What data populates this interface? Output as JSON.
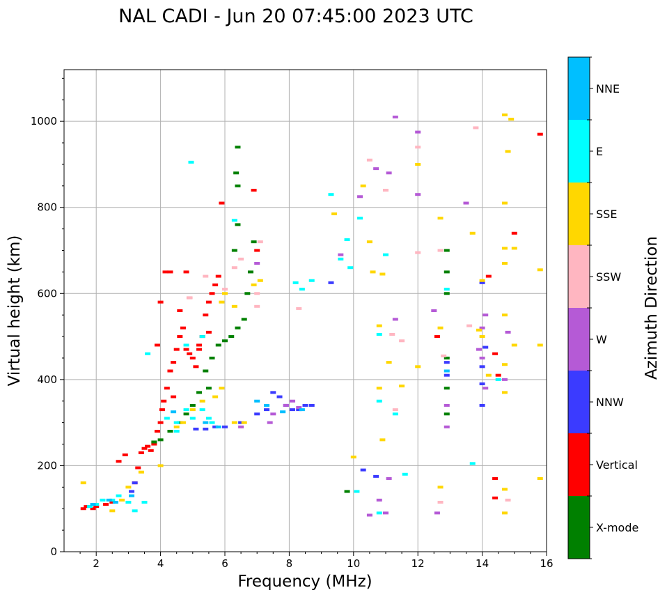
{
  "chart_data": {
    "type": "scatter",
    "title": "NAL CADI - Jun 20 07:45:00 2023 UTC",
    "xlabel": "Frequency (MHz)",
    "ylabel": "Virtual height (km)",
    "xlim": [
      1,
      16
    ],
    "ylim": [
      0,
      1120
    ],
    "xticks": [
      2,
      4,
      6,
      8,
      10,
      12,
      14,
      16
    ],
    "yticks": [
      0,
      200,
      400,
      600,
      800,
      1000
    ],
    "grid": true,
    "colorbar": {
      "label": "Azimuth Direction",
      "categories": [
        {
          "name": "X-mode",
          "color": "#008000"
        },
        {
          "name": "Vertical",
          "color": "#ff0000"
        },
        {
          "name": "NNW",
          "color": "#3b3bff"
        },
        {
          "name": "W",
          "color": "#b55ad6"
        },
        {
          "name": "SSW",
          "color": "#ffb6c1"
        },
        {
          "name": "SSE",
          "color": "#ffd700"
        },
        {
          "name": "E",
          "color": "#00ffff"
        },
        {
          "name": "NNE",
          "color": "#00bfff"
        }
      ]
    },
    "series": [
      {
        "name": "Vertical",
        "points": [
          [
            1.6,
            100
          ],
          [
            1.7,
            105
          ],
          [
            1.9,
            100
          ],
          [
            2.0,
            105
          ],
          [
            2.3,
            110
          ],
          [
            2.5,
            115
          ],
          [
            2.7,
            210
          ],
          [
            2.9,
            225
          ],
          [
            3.2,
            160
          ],
          [
            3.3,
            195
          ],
          [
            3.4,
            230
          ],
          [
            3.5,
            240
          ],
          [
            3.6,
            245
          ],
          [
            3.7,
            235
          ],
          [
            3.8,
            250
          ],
          [
            3.9,
            280
          ],
          [
            4.0,
            300
          ],
          [
            4.05,
            330
          ],
          [
            4.1,
            350
          ],
          [
            4.2,
            380
          ],
          [
            4.3,
            420
          ],
          [
            4.3,
            650
          ],
          [
            4.4,
            440
          ],
          [
            4.5,
            470
          ],
          [
            4.6,
            500
          ],
          [
            4.7,
            520
          ],
          [
            4.8,
            470
          ],
          [
            4.9,
            460
          ],
          [
            5.0,
            450
          ],
          [
            5.1,
            430
          ],
          [
            5.2,
            480
          ],
          [
            5.3,
            500
          ],
          [
            5.4,
            550
          ],
          [
            5.5,
            580
          ],
          [
            5.6,
            600
          ],
          [
            5.7,
            620
          ],
          [
            5.8,
            640
          ],
          [
            5.9,
            810
          ],
          [
            4.6,
            560
          ],
          [
            4.9,
            590
          ],
          [
            5.2,
            470
          ],
          [
            5.5,
            510
          ],
          [
            6.9,
            840
          ],
          [
            7.0,
            700
          ],
          [
            4.8,
            650
          ],
          [
            4.15,
            650
          ],
          [
            12.6,
            500
          ],
          [
            14.2,
            640
          ],
          [
            14.4,
            460
          ],
          [
            14.5,
            410
          ],
          [
            14.4,
            170
          ],
          [
            14.4,
            125
          ],
          [
            15.0,
            740
          ],
          [
            15.8,
            970
          ],
          [
            4.0,
            580
          ],
          [
            3.9,
            480
          ],
          [
            4.4,
            360
          ]
        ]
      },
      {
        "name": "X-mode",
        "points": [
          [
            3.8,
            255
          ],
          [
            4.0,
            260
          ],
          [
            4.3,
            280
          ],
          [
            4.6,
            300
          ],
          [
            4.8,
            320
          ],
          [
            5.0,
            340
          ],
          [
            5.2,
            370
          ],
          [
            5.4,
            420
          ],
          [
            5.6,
            450
          ],
          [
            5.8,
            480
          ],
          [
            6.0,
            490
          ],
          [
            6.2,
            500
          ],
          [
            6.4,
            520
          ],
          [
            6.6,
            540
          ],
          [
            6.7,
            600
          ],
          [
            6.8,
            650
          ],
          [
            6.3,
            700
          ],
          [
            6.4,
            760
          ],
          [
            6.4,
            850
          ],
          [
            6.4,
            940
          ],
          [
            6.35,
            880
          ],
          [
            6.9,
            720
          ],
          [
            5.5,
            380
          ],
          [
            12.9,
            700
          ],
          [
            12.9,
            650
          ],
          [
            12.9,
            600
          ],
          [
            12.9,
            450
          ],
          [
            12.9,
            380
          ],
          [
            12.9,
            320
          ],
          [
            9.8,
            140
          ]
        ]
      },
      {
        "name": "NNW",
        "points": [
          [
            5.1,
            285
          ],
          [
            5.4,
            285
          ],
          [
            5.7,
            290
          ],
          [
            6.0,
            290
          ],
          [
            6.5,
            300
          ],
          [
            7.0,
            320
          ],
          [
            7.3,
            330
          ],
          [
            7.5,
            370
          ],
          [
            7.7,
            360
          ],
          [
            7.9,
            340
          ],
          [
            8.1,
            330
          ],
          [
            8.3,
            330
          ],
          [
            8.5,
            340
          ],
          [
            8.7,
            340
          ],
          [
            3.1,
            140
          ],
          [
            3.2,
            160
          ],
          [
            9.3,
            625
          ],
          [
            10.3,
            190
          ],
          [
            10.7,
            175
          ],
          [
            12.9,
            410
          ],
          [
            12.9,
            440
          ],
          [
            14.0,
            625
          ],
          [
            14.0,
            430
          ],
          [
            14.0,
            340
          ],
          [
            14.0,
            390
          ],
          [
            14.1,
            475
          ]
        ]
      },
      {
        "name": "W",
        "points": [
          [
            7.5,
            320
          ],
          [
            7.9,
            340
          ],
          [
            8.1,
            350
          ],
          [
            8.3,
            335
          ],
          [
            7.4,
            300
          ],
          [
            6.5,
            290
          ],
          [
            7.0,
            670
          ],
          [
            11.3,
            1010
          ],
          [
            10.7,
            890
          ],
          [
            11.1,
            880
          ],
          [
            10.2,
            825
          ],
          [
            12.0,
            975
          ],
          [
            12.0,
            830
          ],
          [
            13.5,
            810
          ],
          [
            11.3,
            540
          ],
          [
            12.5,
            560
          ],
          [
            12.6,
            90
          ],
          [
            11.0,
            90
          ],
          [
            10.8,
            120
          ],
          [
            10.5,
            85
          ],
          [
            11.1,
            170
          ],
          [
            14.7,
            400
          ],
          [
            14.8,
            510
          ],
          [
            13.9,
            470
          ],
          [
            14.1,
            550
          ],
          [
            14.0,
            520
          ],
          [
            14.0,
            450
          ],
          [
            14.1,
            380
          ],
          [
            12.9,
            340
          ],
          [
            12.9,
            290
          ],
          [
            9.6,
            690
          ]
        ]
      },
      {
        "name": "SSW",
        "points": [
          [
            6.0,
            610
          ],
          [
            6.3,
            660
          ],
          [
            6.5,
            680
          ],
          [
            7.0,
            600
          ],
          [
            7.0,
            570
          ],
          [
            7.1,
            720
          ],
          [
            5.4,
            640
          ],
          [
            4.9,
            590
          ],
          [
            8.3,
            565
          ],
          [
            10.5,
            910
          ],
          [
            11.0,
            840
          ],
          [
            12.0,
            940
          ],
          [
            13.8,
            985
          ],
          [
            12.0,
            695
          ],
          [
            12.7,
            700
          ],
          [
            11.2,
            505
          ],
          [
            11.5,
            490
          ],
          [
            11.3,
            330
          ],
          [
            12.7,
            115
          ],
          [
            13.6,
            525
          ],
          [
            12.8,
            455
          ],
          [
            14.8,
            120
          ]
        ]
      },
      {
        "name": "SSE",
        "points": [
          [
            1.6,
            160
          ],
          [
            2.5,
            95
          ],
          [
            2.8,
            120
          ],
          [
            3.0,
            150
          ],
          [
            3.4,
            185
          ],
          [
            4.0,
            200
          ],
          [
            4.5,
            290
          ],
          [
            4.7,
            300
          ],
          [
            5.0,
            330
          ],
          [
            5.3,
            350
          ],
          [
            5.7,
            360
          ],
          [
            5.9,
            380
          ],
          [
            6.3,
            300
          ],
          [
            6.6,
            300
          ],
          [
            5.9,
            580
          ],
          [
            6.0,
            600
          ],
          [
            6.3,
            570
          ],
          [
            6.9,
            620
          ],
          [
            7.1,
            630
          ],
          [
            9.4,
            785
          ],
          [
            10.0,
            220
          ],
          [
            10.5,
            720
          ],
          [
            10.6,
            650
          ],
          [
            10.9,
            645
          ],
          [
            10.8,
            525
          ],
          [
            10.8,
            380
          ],
          [
            10.9,
            260
          ],
          [
            11.1,
            440
          ],
          [
            11.5,
            385
          ],
          [
            12.0,
            430
          ],
          [
            12.0,
            900
          ],
          [
            12.7,
            775
          ],
          [
            12.7,
            520
          ],
          [
            12.7,
            150
          ],
          [
            13.7,
            740
          ],
          [
            14.0,
            630
          ],
          [
            14.0,
            500
          ],
          [
            14.7,
            1015
          ],
          [
            14.9,
            1005
          ],
          [
            14.8,
            930
          ],
          [
            14.7,
            810
          ],
          [
            14.7,
            705
          ],
          [
            14.7,
            670
          ],
          [
            14.7,
            550
          ],
          [
            14.7,
            435
          ],
          [
            14.7,
            370
          ],
          [
            14.7,
            90
          ],
          [
            14.7,
            145
          ],
          [
            15.0,
            705
          ],
          [
            15.0,
            480
          ],
          [
            15.8,
            655
          ],
          [
            15.8,
            480
          ],
          [
            15.8,
            170
          ],
          [
            13.9,
            515
          ],
          [
            14.2,
            410
          ],
          [
            10.3,
            850
          ]
        ]
      },
      {
        "name": "E",
        "points": [
          [
            1.8,
            105
          ],
          [
            2.0,
            110
          ],
          [
            2.2,
            120
          ],
          [
            2.5,
            120
          ],
          [
            2.7,
            130
          ],
          [
            3.0,
            115
          ],
          [
            3.2,
            95
          ],
          [
            3.5,
            115
          ],
          [
            3.6,
            460
          ],
          [
            4.2,
            310
          ],
          [
            4.5,
            280
          ],
          [
            4.8,
            330
          ],
          [
            5.0,
            310
          ],
          [
            5.3,
            330
          ],
          [
            4.5,
            300
          ],
          [
            5.6,
            300
          ],
          [
            5.5,
            310
          ],
          [
            4.8,
            480
          ],
          [
            5.3,
            500
          ],
          [
            6.3,
            770
          ],
          [
            8.2,
            625
          ],
          [
            8.4,
            610
          ],
          [
            8.7,
            630
          ],
          [
            9.3,
            830
          ],
          [
            9.6,
            680
          ],
          [
            9.8,
            725
          ],
          [
            9.9,
            660
          ],
          [
            10.1,
            140
          ],
          [
            10.2,
            775
          ],
          [
            10.8,
            90
          ],
          [
            10.8,
            350
          ],
          [
            10.8,
            505
          ],
          [
            11.3,
            320
          ],
          [
            11.6,
            180
          ],
          [
            12.9,
            610
          ],
          [
            13.7,
            205
          ],
          [
            14.5,
            400
          ],
          [
            4.95,
            905
          ],
          [
            11.0,
            690
          ]
        ]
      },
      {
        "name": "NNE",
        "points": [
          [
            1.9,
            110
          ],
          [
            2.4,
            120
          ],
          [
            2.6,
            115
          ],
          [
            3.1,
            130
          ],
          [
            4.4,
            325
          ],
          [
            5.4,
            300
          ],
          [
            5.8,
            290
          ],
          [
            7.0,
            350
          ],
          [
            7.3,
            340
          ],
          [
            7.8,
            325
          ],
          [
            8.4,
            330
          ],
          [
            12.9,
            420
          ]
        ]
      }
    ]
  }
}
